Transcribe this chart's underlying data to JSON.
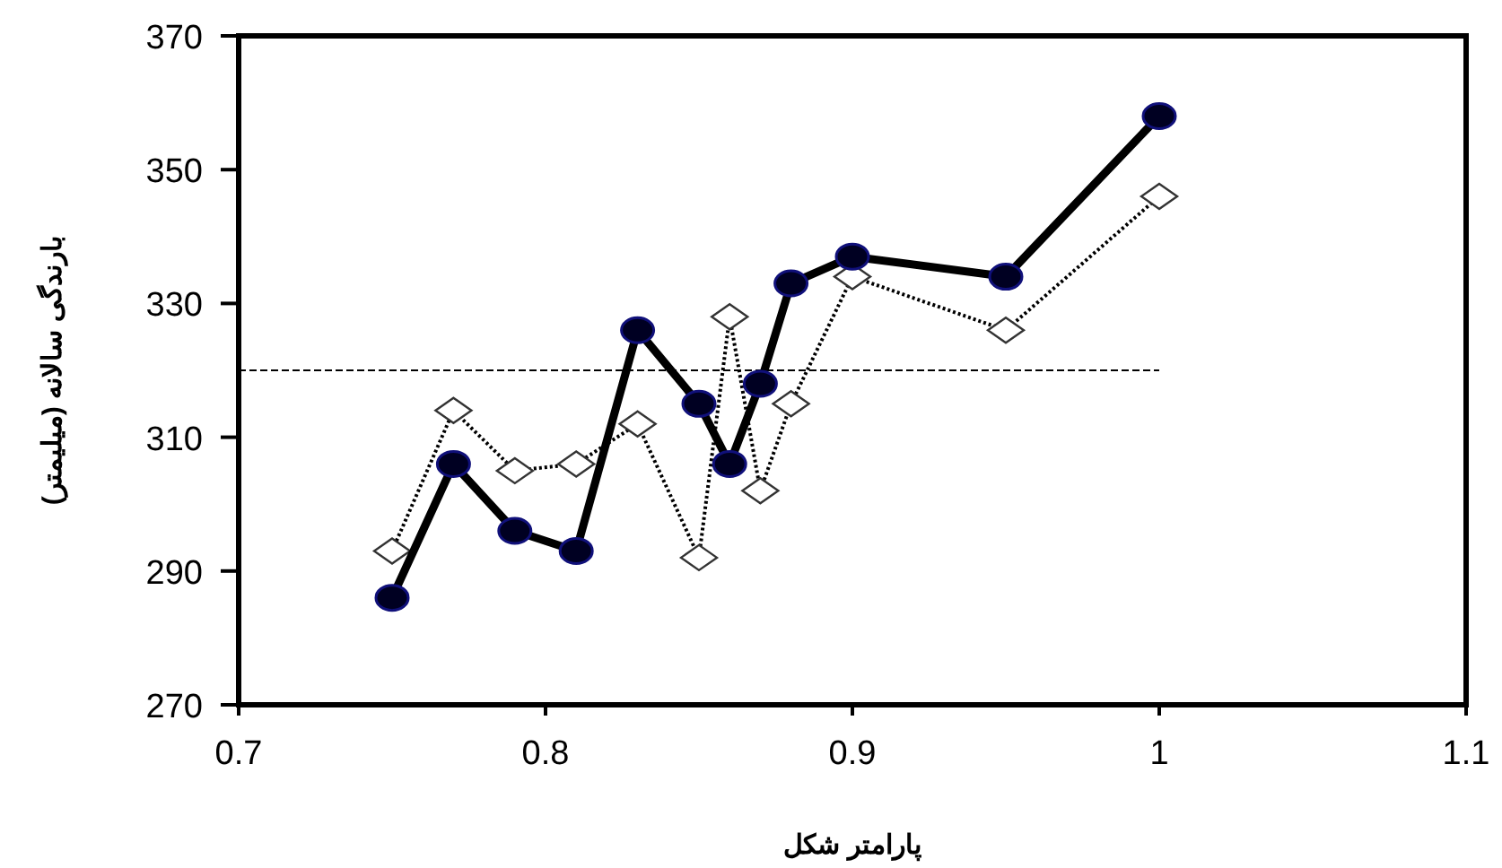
{
  "chart_data": {
    "type": "line",
    "xlabel": "پارامتر شکل",
    "ylabel": "بارندگی سالانه (میلیمتر)",
    "x": [
      0.75,
      0.77,
      0.79,
      0.81,
      0.83,
      0.85,
      0.86,
      0.87,
      0.88,
      0.9,
      0.95,
      1.0
    ],
    "series": [
      {
        "color": "#000000",
        "marker": "circle",
        "line_style": "solid",
        "values": [
          286,
          306,
          296,
          293,
          326,
          315,
          306,
          318,
          333,
          337,
          334,
          358
        ]
      },
      {
        "color": "#ffffff",
        "marker": "diamond",
        "line_style": "dotted",
        "values": [
          293,
          314,
          305,
          306,
          312,
          292,
          328,
          302,
          315,
          334,
          326,
          346
        ]
      }
    ],
    "ref_lines": [
      {
        "axis": "y",
        "value": 320,
        "line_style": "dashed",
        "color": "#000000"
      }
    ],
    "xlim": [
      0.7,
      1.1
    ],
    "xticks": [
      0.7,
      0.8,
      0.9,
      1,
      1.1
    ],
    "ylim": [
      270,
      370
    ],
    "yticks": [
      270,
      290,
      310,
      330,
      350,
      370
    ],
    "grid": false
  }
}
